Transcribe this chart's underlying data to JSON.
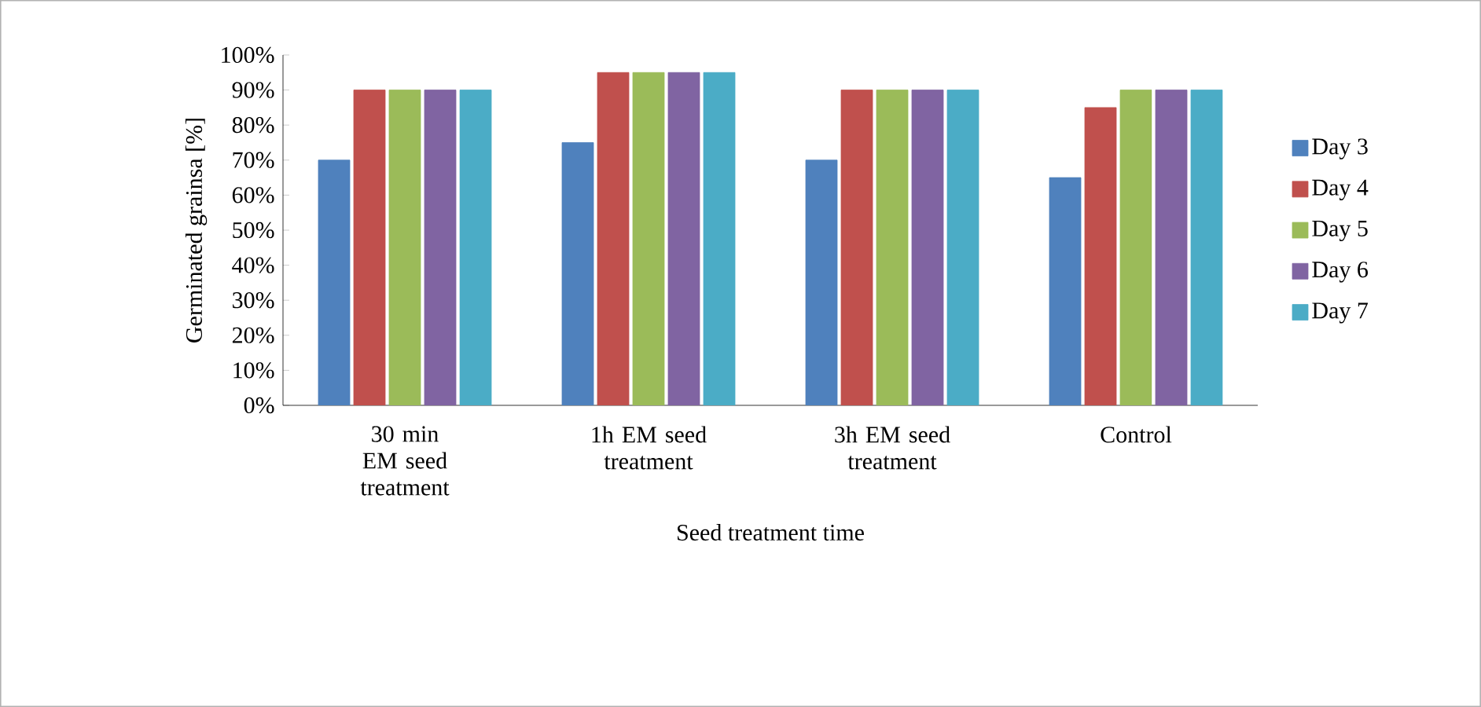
{
  "chart_data": {
    "type": "bar",
    "xlabel": "Seed treatment time",
    "ylabel": "Germinated grainsa [%]",
    "categories": [
      "30 min EM seed treatment",
      "1h EM seed treatment",
      "3h EM seed treatment",
      "Control"
    ],
    "series": [
      {
        "name": "Day 3",
        "color": "#4f81bd",
        "values": [
          70,
          75,
          70,
          65
        ]
      },
      {
        "name": "Day 4",
        "color": "#c0504d",
        "values": [
          90,
          95,
          90,
          85
        ]
      },
      {
        "name": "Day 5",
        "color": "#9bbb59",
        "values": [
          90,
          95,
          90,
          90
        ]
      },
      {
        "name": "Day 6",
        "color": "#8064a2",
        "values": [
          90,
          95,
          90,
          90
        ]
      },
      {
        "name": "Day 7",
        "color": "#4bacc6",
        "values": [
          90,
          95,
          90,
          90
        ]
      }
    ],
    "ylim": [
      0,
      100
    ],
    "yticks": [
      {
        "value": 0,
        "label": "0%"
      },
      {
        "value": 10,
        "label": "10%"
      },
      {
        "value": 20,
        "label": "20%"
      },
      {
        "value": 30,
        "label": "30%"
      },
      {
        "value": 40,
        "label": "40%"
      },
      {
        "value": 50,
        "label": "50%"
      },
      {
        "value": 60,
        "label": "60%"
      },
      {
        "value": 70,
        "label": "70%"
      },
      {
        "value": 80,
        "label": "80%"
      },
      {
        "value": 90,
        "label": "90%"
      },
      {
        "value": 100,
        "label": "100%"
      }
    ],
    "grid": false,
    "legend": "right"
  }
}
